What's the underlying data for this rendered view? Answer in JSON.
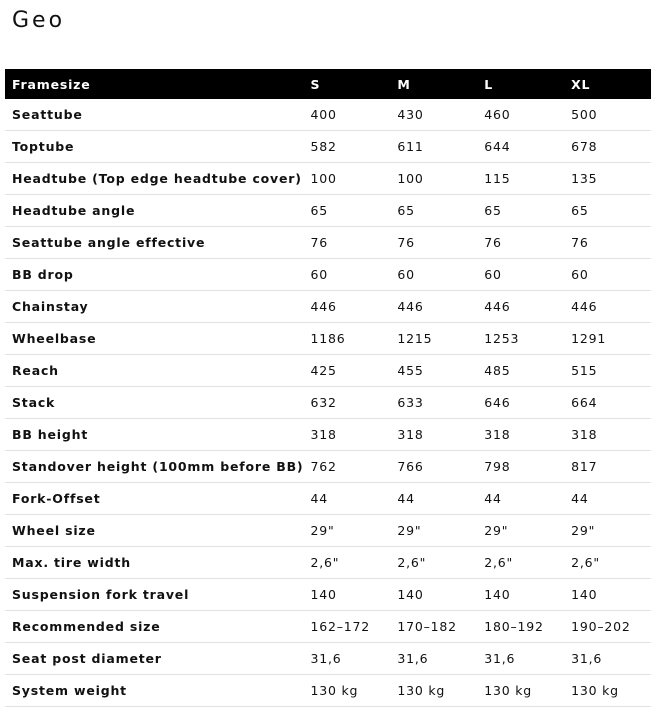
{
  "title": "Geo",
  "table": {
    "header": [
      "Framesize",
      "S",
      "M",
      "L",
      "XL"
    ],
    "rows": [
      [
        "Seattube",
        "400",
        "430",
        "460",
        "500"
      ],
      [
        "Toptube",
        "582",
        "611",
        "644",
        "678"
      ],
      [
        "Headtube (Top edge headtube cover)",
        "100",
        "100",
        "115",
        "135"
      ],
      [
        "Headtube angle",
        "65",
        "65",
        "65",
        "65"
      ],
      [
        "Seattube angle effective",
        "76",
        "76",
        "76",
        "76"
      ],
      [
        "BB drop",
        "60",
        "60",
        "60",
        "60"
      ],
      [
        "Chainstay",
        "446",
        "446",
        "446",
        "446"
      ],
      [
        "Wheelbase",
        "1186",
        "1215",
        "1253",
        "1291"
      ],
      [
        "Reach",
        "425",
        "455",
        "485",
        "515"
      ],
      [
        "Stack",
        "632",
        "633",
        "646",
        "664"
      ],
      [
        "BB height",
        "318",
        "318",
        "318",
        "318"
      ],
      [
        "Standover height (100mm before BB)",
        "762",
        "766",
        "798",
        "817"
      ],
      [
        "Fork-Offset",
        "44",
        "44",
        "44",
        "44"
      ],
      [
        "Wheel size",
        "29\"",
        "29\"",
        "29\"",
        "29\""
      ],
      [
        "Max. tire width",
        "2,6\"",
        "2,6\"",
        "2,6\"",
        "2,6\""
      ],
      [
        "Suspension fork travel",
        "140",
        "140",
        "140",
        "140"
      ],
      [
        "Recommended size",
        "162–172",
        "170–182",
        "180–192",
        "190–202"
      ],
      [
        "Seat post diameter",
        "31,6",
        "31,6",
        "31,6",
        "31,6"
      ],
      [
        "System weight",
        "130 kg",
        "130 kg",
        "130 kg",
        "130 kg"
      ]
    ]
  }
}
